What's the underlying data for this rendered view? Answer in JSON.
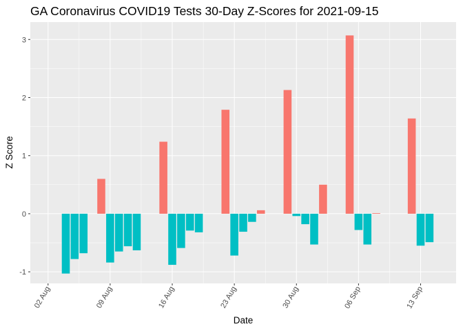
{
  "chart_data": {
    "type": "bar",
    "title": "GA Coronavirus COVID19 Tests 30-Day Z-Scores for 2021-09-15",
    "xlabel": "Date",
    "ylabel": "Z Score",
    "ylim": [
      -1.2,
      3.3
    ],
    "xlim": [
      "2021-07-31",
      "2021-09-17"
    ],
    "y_ticks": [
      "-1",
      "0",
      "1",
      "2",
      "3"
    ],
    "x_ticks": [
      {
        "date": "2021-08-02",
        "label": "02 Aug"
      },
      {
        "date": "2021-08-09",
        "label": "09 Aug"
      },
      {
        "date": "2021-08-16",
        "label": "16 Aug"
      },
      {
        "date": "2021-08-23",
        "label": "23 Aug"
      },
      {
        "date": "2021-08-30",
        "label": "30 Aug"
      },
      {
        "date": "2021-09-06",
        "label": "06 Sep"
      },
      {
        "date": "2021-09-13",
        "label": "13 Sep"
      }
    ],
    "grid": true,
    "colors": {
      "positive": "#F8766D",
      "negative": "#00BFC4",
      "panel": "#EBEBEB",
      "grid": "#FFFFFF"
    },
    "dates": [
      "2021-08-04",
      "2021-08-05",
      "2021-08-06",
      "2021-08-08",
      "2021-08-09",
      "2021-08-10",
      "2021-08-11",
      "2021-08-12",
      "2021-08-15",
      "2021-08-16",
      "2021-08-17",
      "2021-08-18",
      "2021-08-19",
      "2021-08-22",
      "2021-08-23",
      "2021-08-24",
      "2021-08-25",
      "2021-08-26",
      "2021-08-29",
      "2021-08-30",
      "2021-08-31",
      "2021-09-01",
      "2021-09-02",
      "2021-09-05",
      "2021-09-06",
      "2021-09-07",
      "2021-09-08",
      "2021-09-12",
      "2021-09-13",
      "2021-09-14"
    ],
    "values": [
      -1.03,
      -0.78,
      -0.68,
      0.6,
      -0.84,
      -0.65,
      -0.56,
      -0.63,
      1.24,
      -0.88,
      -0.59,
      -0.29,
      -0.32,
      1.79,
      -0.72,
      -0.31,
      -0.14,
      0.06,
      2.13,
      -0.04,
      -0.18,
      -0.53,
      0.5,
      3.07,
      -0.28,
      -0.53,
      0.01,
      1.64,
      -0.55,
      -0.49
    ]
  }
}
